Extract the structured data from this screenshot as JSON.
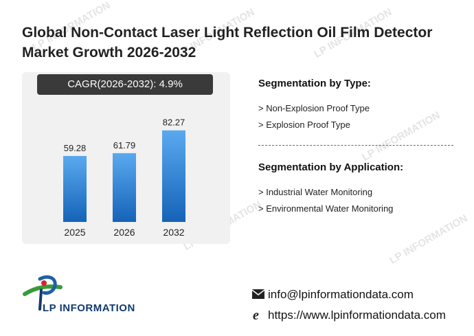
{
  "title": "Global Non-Contact Laser Light Reflection Oil Film Detector Market Growth 2026-2032",
  "cagr": {
    "label": "CAGR(2026-2032):",
    "value": "4.9%"
  },
  "chart_data": {
    "type": "bar",
    "categories": [
      "2025",
      "2026",
      "2032"
    ],
    "values": [
      59.28,
      61.79,
      82.27
    ],
    "value_labels": [
      "59.28",
      "61.79",
      "82.27"
    ],
    "ylim": [
      0,
      100
    ],
    "grid": false,
    "bar_color_top": "#5aa9ef",
    "bar_color_bottom": "#1563b8"
  },
  "segmentation": {
    "type_title": "Segmentation by Type:",
    "types": [
      "> Non-Explosion Proof Type",
      "> Explosion Proof Type"
    ],
    "application_title": "Segmentation by Application:",
    "applications": [
      "> Industrial Water Monitoring",
      "> Environmental Water Monitoring"
    ]
  },
  "brand": {
    "name": "LP INFORMATION",
    "watermark": "LP INFORMATION",
    "primary_color": "#123a6e",
    "accent_green": "#3a9a3a",
    "accent_red": "#d8232a"
  },
  "contact": {
    "email": "info@lpinformationdata.com",
    "website": "https://www.lpinformationdata.com",
    "email_icon": "envelope-icon",
    "web_icon": "browser-e-icon"
  }
}
